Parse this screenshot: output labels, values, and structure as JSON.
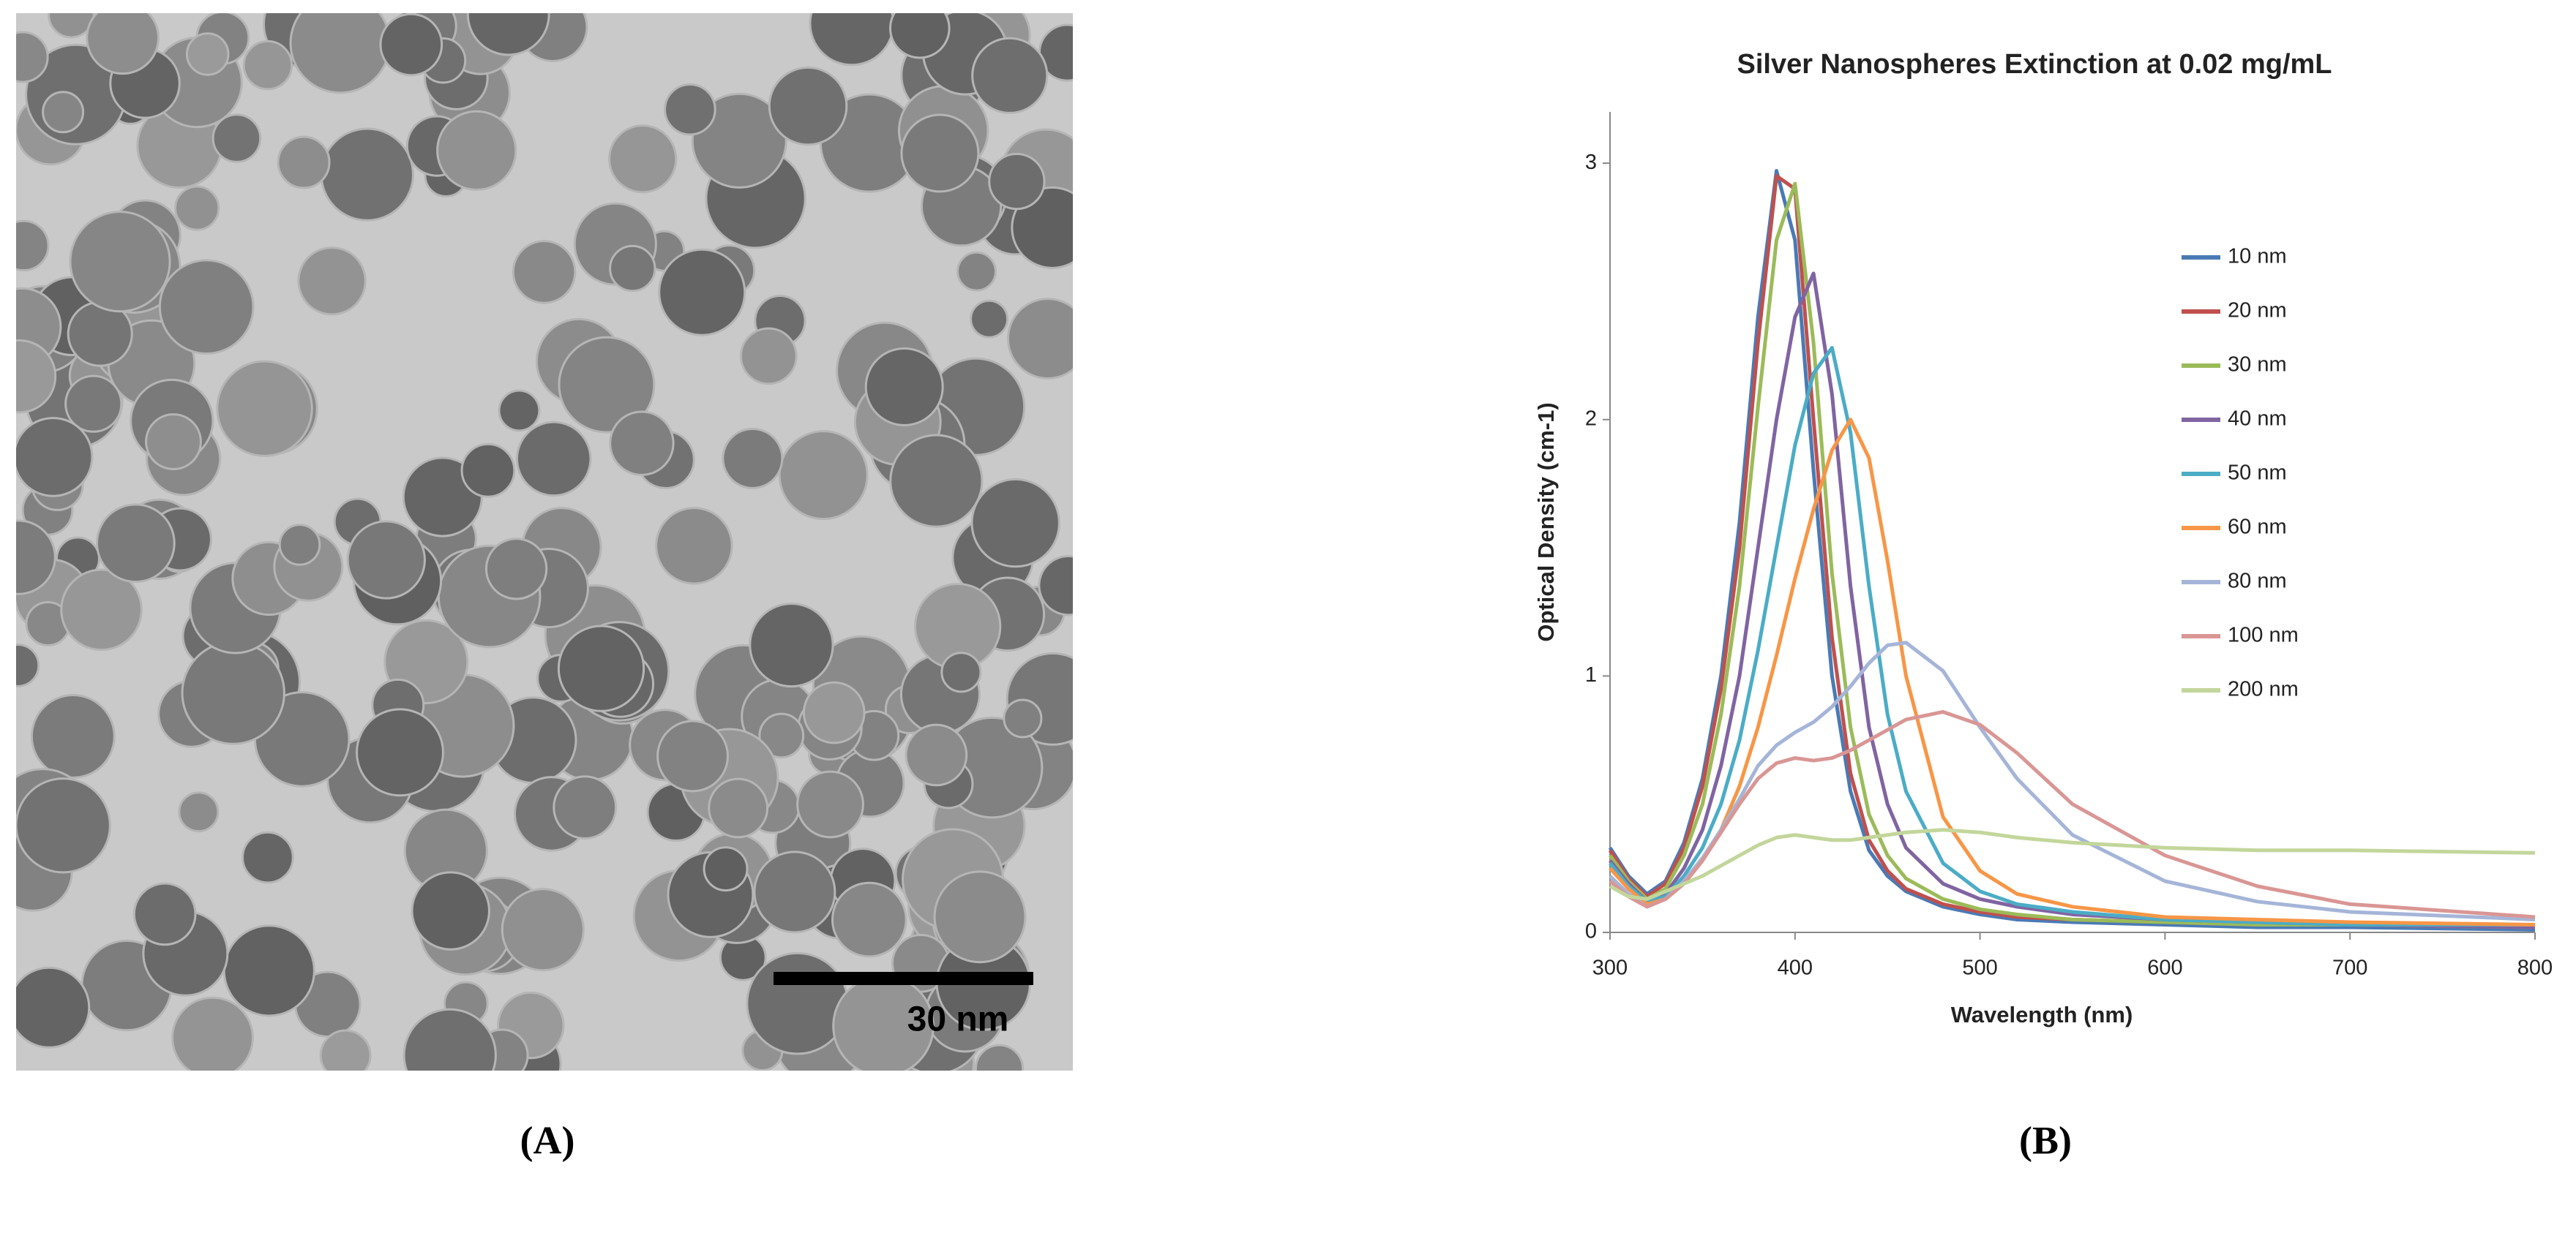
{
  "figure": {
    "scale_bar_label": "30 nm",
    "panel_labels": [
      "(A)",
      "(B)"
    ]
  },
  "chart_data": {
    "type": "line",
    "title": "Silver Nanospheres Extinction at 0.02 mg/mL",
    "x_label": "Wavelength (nm)",
    "y_label": "Optical Density (cm-1)",
    "xlim": [
      300,
      800
    ],
    "xticks": [
      300,
      400,
      500,
      600,
      700,
      800
    ],
    "ylim": [
      0,
      3.2
    ],
    "yticks": [
      0,
      1,
      2,
      3
    ],
    "grid": false,
    "legend": "right",
    "x": [
      300,
      310,
      320,
      330,
      340,
      350,
      360,
      370,
      380,
      390,
      400,
      410,
      420,
      430,
      440,
      450,
      460,
      480,
      500,
      520,
      550,
      600,
      650,
      700,
      800
    ],
    "series": [
      {
        "name": "10 nm",
        "color": "#4a7ab5",
        "values": [
          0.33,
          0.22,
          0.15,
          0.2,
          0.35,
          0.6,
          1.0,
          1.6,
          2.4,
          2.97,
          2.7,
          1.8,
          1.0,
          0.55,
          0.32,
          0.22,
          0.16,
          0.1,
          0.07,
          0.05,
          0.04,
          0.03,
          0.02,
          0.02,
          0.01
        ]
      },
      {
        "name": "20 nm",
        "color": "#c0504d",
        "values": [
          0.32,
          0.21,
          0.14,
          0.19,
          0.33,
          0.57,
          0.95,
          1.5,
          2.3,
          2.95,
          2.9,
          2.0,
          1.15,
          0.62,
          0.36,
          0.24,
          0.17,
          0.11,
          0.08,
          0.06,
          0.05,
          0.04,
          0.03,
          0.03,
          0.02
        ]
      },
      {
        "name": "30 nm",
        "color": "#9bbb59",
        "values": [
          0.3,
          0.2,
          0.13,
          0.17,
          0.3,
          0.5,
          0.85,
          1.35,
          2.05,
          2.7,
          2.92,
          2.3,
          1.4,
          0.8,
          0.46,
          0.3,
          0.21,
          0.13,
          0.09,
          0.07,
          0.05,
          0.04,
          0.03,
          0.03,
          0.02
        ]
      },
      {
        "name": "40 nm",
        "color": "#8064a2",
        "values": [
          0.28,
          0.19,
          0.12,
          0.15,
          0.25,
          0.4,
          0.65,
          1.0,
          1.5,
          2.0,
          2.4,
          2.57,
          2.1,
          1.35,
          0.8,
          0.5,
          0.33,
          0.19,
          0.13,
          0.1,
          0.07,
          0.05,
          0.04,
          0.03,
          0.02
        ]
      },
      {
        "name": "50 nm",
        "color": "#4bacc6",
        "values": [
          0.27,
          0.18,
          0.12,
          0.14,
          0.22,
          0.33,
          0.5,
          0.75,
          1.1,
          1.5,
          1.9,
          2.18,
          2.28,
          1.95,
          1.35,
          0.85,
          0.55,
          0.27,
          0.16,
          0.11,
          0.08,
          0.05,
          0.04,
          0.03,
          0.03
        ]
      },
      {
        "name": "60 nm",
        "color": "#f79646",
        "values": [
          0.25,
          0.17,
          0.11,
          0.13,
          0.19,
          0.28,
          0.4,
          0.57,
          0.8,
          1.08,
          1.38,
          1.65,
          1.88,
          2.0,
          1.85,
          1.45,
          1.0,
          0.45,
          0.24,
          0.15,
          0.1,
          0.06,
          0.05,
          0.04,
          0.03
        ]
      },
      {
        "name": "80 nm",
        "color": "#a5b5d8",
        "values": [
          0.22,
          0.15,
          0.1,
          0.13,
          0.2,
          0.29,
          0.4,
          0.52,
          0.65,
          0.73,
          0.78,
          0.82,
          0.88,
          0.96,
          1.05,
          1.12,
          1.13,
          1.02,
          0.8,
          0.6,
          0.38,
          0.2,
          0.12,
          0.08,
          0.05
        ]
      },
      {
        "name": "100 nm",
        "color": "#d99694",
        "values": [
          0.2,
          0.14,
          0.1,
          0.13,
          0.19,
          0.28,
          0.39,
          0.5,
          0.6,
          0.66,
          0.68,
          0.67,
          0.68,
          0.71,
          0.75,
          0.79,
          0.83,
          0.86,
          0.81,
          0.7,
          0.5,
          0.3,
          0.18,
          0.11,
          0.06
        ]
      },
      {
        "name": "200 nm",
        "color": "#c3d69b",
        "values": [
          0.18,
          0.14,
          0.13,
          0.16,
          0.19,
          0.22,
          0.26,
          0.3,
          0.34,
          0.37,
          0.38,
          0.37,
          0.36,
          0.36,
          0.37,
          0.38,
          0.39,
          0.4,
          0.39,
          0.37,
          0.35,
          0.33,
          0.32,
          0.32,
          0.31
        ]
      }
    ]
  }
}
